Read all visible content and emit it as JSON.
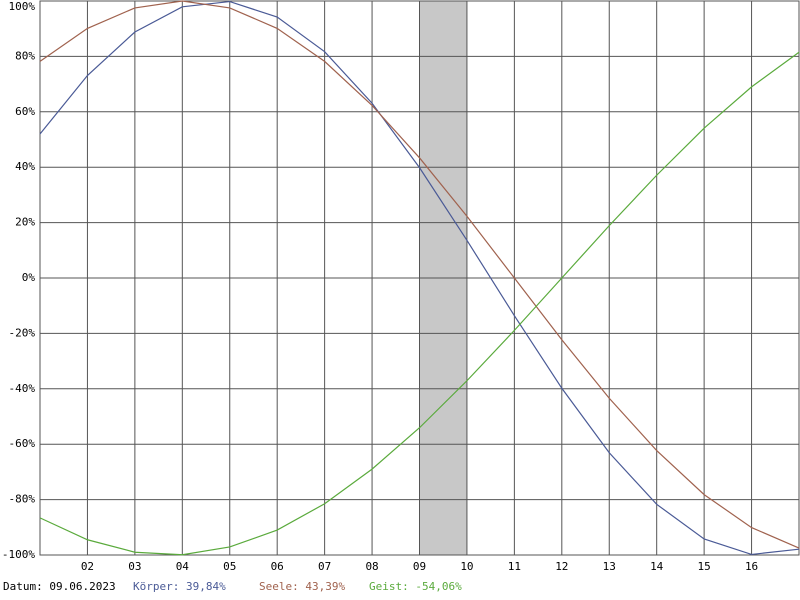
{
  "chart_data": {
    "type": "line",
    "x": [
      1,
      2,
      3,
      4,
      5,
      6,
      7,
      8,
      9,
      10,
      11,
      12,
      13,
      14,
      15,
      16,
      17
    ],
    "xlim": [
      1,
      17
    ],
    "xticks": [
      {
        "value": 2,
        "label": "02"
      },
      {
        "value": 3,
        "label": "03"
      },
      {
        "value": 4,
        "label": "04"
      },
      {
        "value": 5,
        "label": "05"
      },
      {
        "value": 6,
        "label": "06"
      },
      {
        "value": 7,
        "label": "07"
      },
      {
        "value": 8,
        "label": "08"
      },
      {
        "value": 9,
        "label": "09"
      },
      {
        "value": 10,
        "label": "10"
      },
      {
        "value": 11,
        "label": "11"
      },
      {
        "value": 12,
        "label": "12"
      },
      {
        "value": 13,
        "label": "13"
      },
      {
        "value": 14,
        "label": "14"
      },
      {
        "value": 15,
        "label": "15"
      },
      {
        "value": 16,
        "label": "16"
      }
    ],
    "ylim": [
      -100,
      100
    ],
    "yticks": [
      {
        "value": 100,
        "label": "100%"
      },
      {
        "value": 80,
        "label": "80%"
      },
      {
        "value": 60,
        "label": "60%"
      },
      {
        "value": 40,
        "label": "40%"
      },
      {
        "value": 20,
        "label": "20%"
      },
      {
        "value": 0,
        "label": "0%"
      },
      {
        "value": -20,
        "label": "-20%"
      },
      {
        "value": -40,
        "label": "-40%"
      },
      {
        "value": -60,
        "label": "-60%"
      },
      {
        "value": -80,
        "label": "-80%"
      },
      {
        "value": -100,
        "label": "-100%"
      }
    ],
    "grid": true,
    "highlight": [
      9,
      10
    ],
    "series": [
      {
        "name": "Körper",
        "color": "#4a5a96",
        "values": [
          52.0,
          73.1,
          88.8,
          97.9,
          99.8,
          94.2,
          81.7,
          63.1,
          39.84,
          13.6,
          -13.6,
          -39.8,
          -63.1,
          -81.7,
          -94.2,
          -99.8,
          -97.9
        ]
      },
      {
        "name": "Seele",
        "color": "#a0624e",
        "values": [
          78.2,
          90.1,
          97.5,
          100.0,
          97.5,
          90.1,
          78.2,
          62.3,
          43.39,
          22.3,
          0.0,
          -22.3,
          -43.4,
          -62.3,
          -78.2,
          -90.1,
          -97.5
        ]
      },
      {
        "name": "Geist",
        "color": "#5aaa3c",
        "values": [
          -86.6,
          -94.5,
          -99.0,
          -99.9,
          -97.1,
          -91.0,
          -81.5,
          -69.0,
          -54.06,
          -37.1,
          -18.9,
          0.0,
          18.9,
          37.1,
          54.1,
          69.0,
          81.5
        ]
      }
    ],
    "footer": [
      "Datum: 09.06.2023",
      "Körper: 39,84%",
      "Seele: 43,39%",
      "Geist: -54,06%"
    ]
  }
}
